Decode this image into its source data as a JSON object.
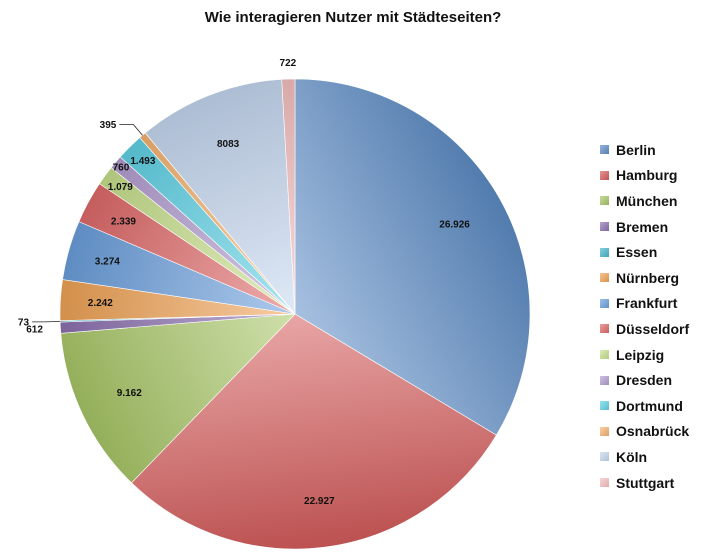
{
  "chart_data": {
    "type": "pie",
    "title": "Wie interagieren Nutzer mit Städteseiten?",
    "legend_position": "right",
    "slices": [
      {
        "name": "Berlin",
        "value": 26926,
        "label": "26.926",
        "color": "#5d8dc6"
      },
      {
        "name": "Hamburg",
        "value": 22927,
        "label": "22.927",
        "color": "#d65c5c"
      },
      {
        "name": "München",
        "value": 9162,
        "label": "9.162",
        "color": "#a8c766"
      },
      {
        "name": "Bremen",
        "value": 612,
        "label": "612",
        "color": "#8c71b0"
      },
      {
        "name": "Essen",
        "value": 73,
        "label": "73",
        "color": "#47b6cc"
      },
      {
        "name": "Nürnberg",
        "value": 2242,
        "label": "2.242",
        "color": "#f0a355"
      },
      {
        "name": "Frankfurt",
        "value": 3274,
        "label": "3.274",
        "color": "#6b9fdc"
      },
      {
        "name": "Düsseldorf",
        "value": 2339,
        "label": "2.339",
        "color": "#e06a6a"
      },
      {
        "name": "Leipzig",
        "value": 1079,
        "label": "1.079",
        "color": "#c7e08c"
      },
      {
        "name": "Dresden",
        "value": 760,
        "label": "760",
        "color": "#b39ed1"
      },
      {
        "name": "Dortmund",
        "value": 1493,
        "label": "1.493",
        "color": "#5fd2e6"
      },
      {
        "name": "Osnabrück",
        "value": 395,
        "label": "395",
        "color": "#f5b470"
      },
      {
        "name": "Köln",
        "value": 8083,
        "label": "8083",
        "color": "#c5d7f0"
      },
      {
        "name": "Stuttgart",
        "value": 722,
        "label": "722",
        "color": "#f5c0c0"
      }
    ]
  }
}
